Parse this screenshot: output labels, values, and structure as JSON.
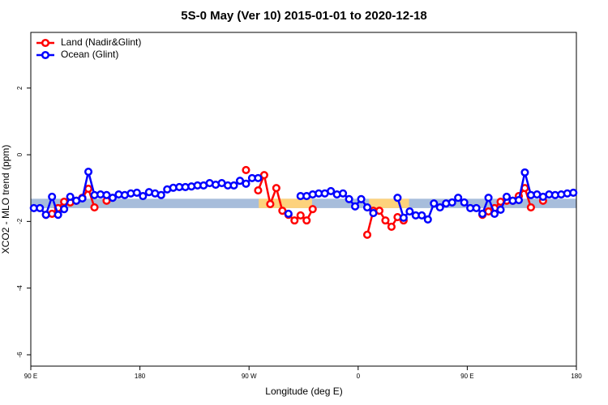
{
  "chart_data": {
    "type": "line",
    "title": "5S-0 May (Ver 10)   2015-01-01 to 2020-12-18",
    "xlabel": "Longitude (deg E)",
    "ylabel": "XCO2 - MLO trend (ppm)",
    "xlim": [
      90,
      540
    ],
    "ylim": [
      -6.34,
      3.67
    ],
    "xticks": [
      {
        "value": 90,
        "label": "90 E"
      },
      180,
      {
        "value": 270,
        "label": "90 W"
      },
      {
        "value": 360,
        "label": "0"
      },
      {
        "value": 450,
        "label": "90 E"
      },
      {
        "value": 540,
        "label": "180"
      }
    ],
    "yticks": [
      2,
      0,
      -2,
      -4,
      -6
    ],
    "legend": "top-left",
    "band": {
      "y": [
        -1.6,
        -1.32
      ],
      "color": "#a7bddb"
    },
    "highlights": {
      "x": [
        [
          278,
          322
        ],
        [
          369,
          402
        ]
      ],
      "color": "#fdd27c"
    },
    "x": [
      92.5,
      97.5,
      102.5,
      107.5,
      112.5,
      117.5,
      122.5,
      127.5,
      132.5,
      137.5,
      142.5,
      147.5,
      152.5,
      157.5,
      162.5,
      167.5,
      172.5,
      177.5,
      182.5,
      187.5,
      192.5,
      197.5,
      202.5,
      207.5,
      212.5,
      217.5,
      222.5,
      227.5,
      232.5,
      237.5,
      242.5,
      247.5,
      252.5,
      257.5,
      262.5,
      267.5,
      272.5,
      277.5,
      282.5,
      287.5,
      292.5,
      297.5,
      302.5,
      307.5,
      312.5,
      317.5,
      322.5,
      327.5,
      332.5,
      337.5,
      342.5,
      347.5,
      352.5,
      357.5,
      362.5,
      367.5,
      372.5,
      377.5,
      382.5,
      387.5,
      392.5,
      397.5,
      402.5,
      407.5,
      412.5,
      417.5,
      422.5,
      427.5,
      432.5,
      437.5,
      442.5,
      447.5,
      452.5,
      457.5,
      462.5,
      467.5,
      472.5,
      477.5,
      482.5,
      487.5,
      492.5,
      497.5,
      502.5,
      507.5,
      512.5,
      517.5,
      522.5,
      527.5,
      532.5,
      537.5
    ],
    "series": [
      {
        "name": "Land (Nadir&Glint)",
        "color": "#ff0000",
        "values": [
          null,
          null,
          -1.8,
          -1.77,
          -1.6,
          -1.41,
          -1.43,
          -1.38,
          -1.29,
          -1.02,
          -1.58,
          null,
          -1.38,
          null,
          null,
          null,
          null,
          null,
          null,
          null,
          null,
          null,
          null,
          null,
          null,
          null,
          null,
          null,
          null,
          null,
          null,
          null,
          null,
          null,
          null,
          -0.46,
          null,
          -1.07,
          -0.61,
          -1.48,
          -1.0,
          -1.68,
          -1.8,
          -1.97,
          -1.82,
          -1.97,
          -1.63,
          null,
          null,
          null,
          null,
          null,
          null,
          null,
          null,
          -2.4,
          -1.68,
          -1.68,
          -1.97,
          -2.16,
          -1.87,
          -1.97,
          null,
          null,
          null,
          null,
          null,
          null,
          null,
          null,
          null,
          null,
          null,
          null,
          -1.8,
          -1.7,
          -1.6,
          -1.41,
          -1.38,
          -1.38,
          -1.24,
          -1.0,
          -1.58,
          null,
          -1.38,
          null,
          null,
          null,
          null,
          null
        ]
      },
      {
        "name": "Ocean (Glint)",
        "color": "#0000ff",
        "values": [
          -1.6,
          -1.6,
          -1.8,
          -1.26,
          -1.8,
          -1.63,
          -1.26,
          -1.38,
          -1.31,
          -0.51,
          -1.21,
          -1.19,
          -1.21,
          -1.29,
          -1.19,
          -1.21,
          -1.16,
          -1.14,
          -1.24,
          -1.12,
          -1.16,
          -1.21,
          -1.04,
          -0.99,
          -0.97,
          -0.97,
          -0.95,
          -0.92,
          -0.92,
          -0.85,
          -0.9,
          -0.85,
          -0.92,
          -0.92,
          -0.78,
          -0.87,
          -0.7,
          -0.7,
          null,
          null,
          null,
          null,
          -1.77,
          null,
          -1.24,
          -1.24,
          -1.19,
          -1.16,
          -1.16,
          -1.09,
          -1.19,
          -1.16,
          -1.33,
          -1.55,
          -1.33,
          -1.58,
          -1.75,
          null,
          null,
          null,
          -1.29,
          -1.89,
          -1.7,
          -1.82,
          -1.82,
          -1.94,
          -1.46,
          -1.58,
          -1.46,
          -1.43,
          -1.29,
          -1.43,
          -1.6,
          -1.6,
          -1.77,
          -1.29,
          -1.77,
          -1.65,
          -1.26,
          -1.38,
          -1.36,
          -0.53,
          -1.21,
          -1.19,
          -1.26,
          -1.19,
          -1.21,
          -1.19,
          -1.16,
          -1.14
        ]
      }
    ]
  }
}
